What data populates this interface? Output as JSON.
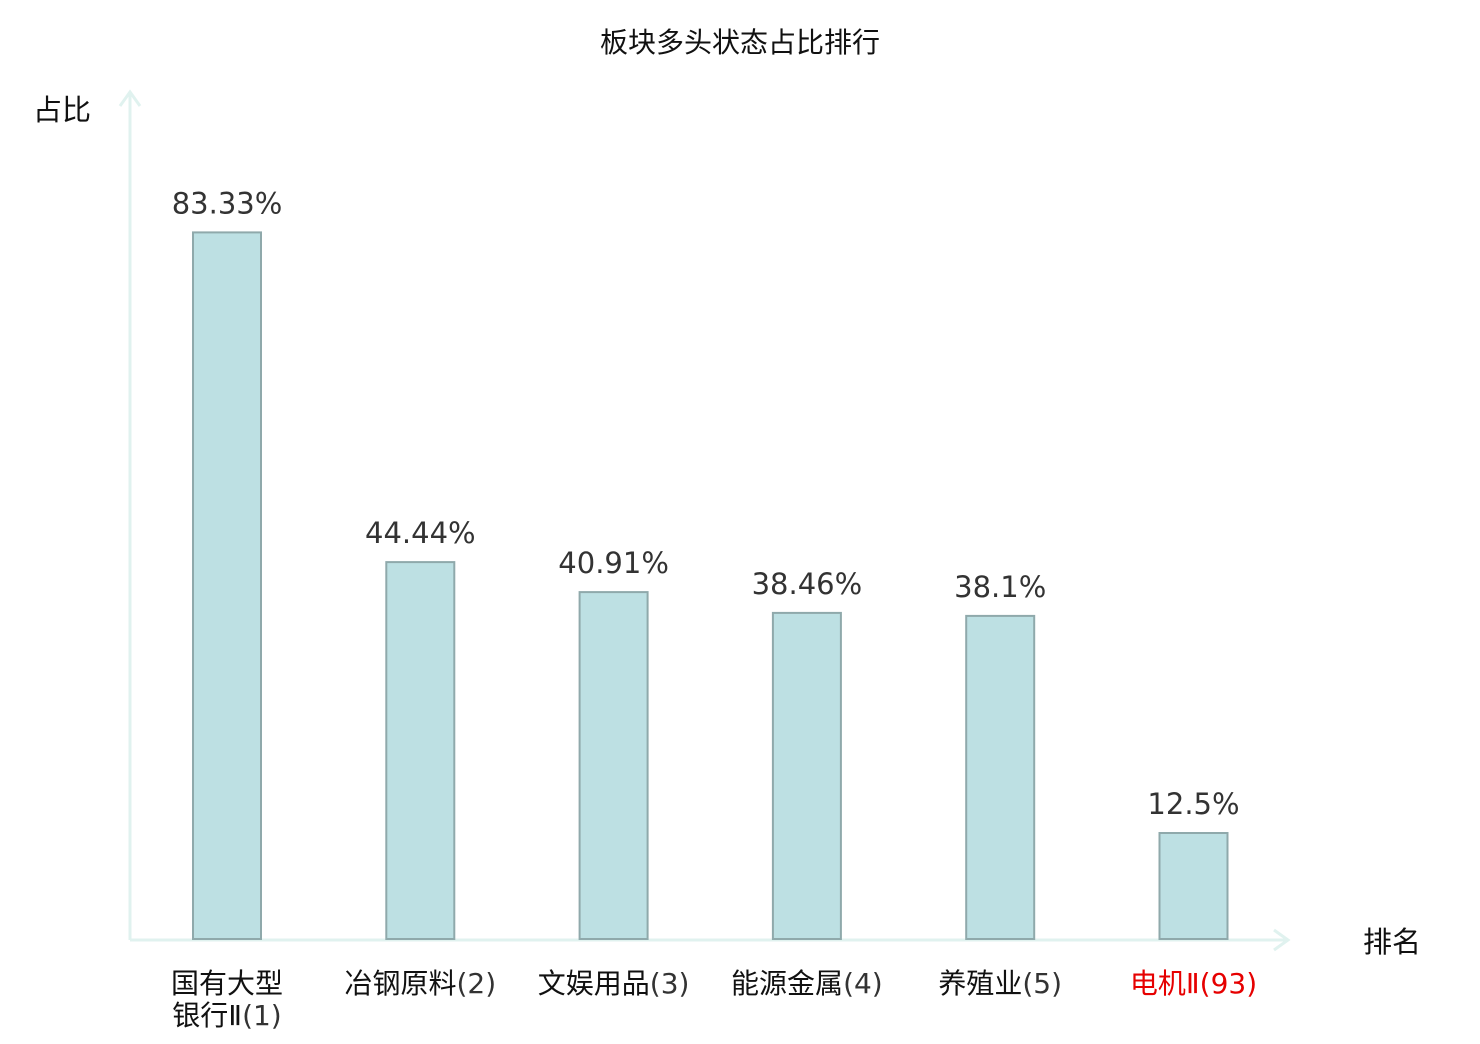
{
  "chart_data": {
    "type": "bar",
    "title": "板块多头状态占比排行",
    "ylabel": "占比",
    "xlabel": "排名",
    "ylim": [
      0,
      100
    ],
    "grid": false,
    "legend": "none",
    "categories": [
      {
        "lines": [
          "国有大型",
          "银行Ⅱ"
        ],
        "rank": "(1)",
        "highlight": false
      },
      {
        "lines": [
          "冶钢原料"
        ],
        "rank": "(2)",
        "highlight": false
      },
      {
        "lines": [
          "文娱用品"
        ],
        "rank": "(3)",
        "highlight": false
      },
      {
        "lines": [
          "能源金属"
        ],
        "rank": "(4)",
        "highlight": false
      },
      {
        "lines": [
          "养殖业"
        ],
        "rank": "(5)",
        "highlight": false
      },
      {
        "lines": [
          "电机Ⅱ"
        ],
        "rank": "(93)",
        "highlight": true
      }
    ],
    "values": [
      83.33,
      44.44,
      40.91,
      38.46,
      38.1,
      12.5
    ],
    "value_labels": [
      "83.33%",
      "44.44%",
      "40.91%",
      "38.46%",
      "38.1%",
      "12.5%"
    ]
  },
  "colors": {
    "bar_fill": "#bde0e3",
    "bar_stroke": "#8fa9ab",
    "axis": "#e0f2ef",
    "text": "#111111",
    "value_text": "#333333",
    "rank_text": "#333333",
    "highlight": "#e60000"
  }
}
